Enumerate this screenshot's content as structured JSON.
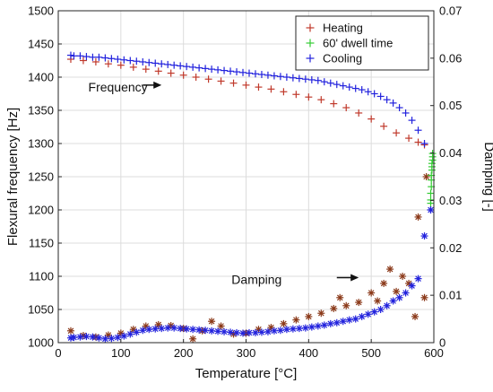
{
  "chart_data": {
    "type": "scatter",
    "xlabel": "Temperature [°C]",
    "ylabel_left": "Flexural frequency [Hz]",
    "ylabel_right": "Damping [-]",
    "xlim": [
      0,
      600
    ],
    "ylim_left": [
      1000,
      1500
    ],
    "ylim_right": [
      0,
      0.07
    ],
    "x_ticks": [
      "0",
      "100",
      "200",
      "300",
      "400",
      "500",
      "600"
    ],
    "y_left_ticks": [
      "1000",
      "1050",
      "1100",
      "1150",
      "1200",
      "1250",
      "1300",
      "1350",
      "1400",
      "1450",
      "1500"
    ],
    "y_right_ticks": [
      "0",
      "0.01",
      "0.02",
      "0.03",
      "0.04",
      "0.05",
      "0.06",
      "0.07"
    ],
    "grid": true,
    "legend": {
      "placement": "top-right",
      "entries": [
        {
          "label": "Heating",
          "color": "#c0392b"
        },
        {
          "label": "60' dwell time",
          "color": "#33cc33"
        },
        {
          "label": "Cooling",
          "color": "#2222dd"
        }
      ]
    },
    "annotations": [
      {
        "text": "Frequency",
        "x": 135,
        "y": 1385
      },
      {
        "text": "Damping",
        "x": 500,
        "y": 1095
      }
    ],
    "series": [
      {
        "name": "Heating",
        "axis": "left",
        "marker": "plus",
        "color": "#c0392b",
        "x": [
          20,
          40,
          60,
          80,
          100,
          120,
          140,
          160,
          180,
          200,
          220,
          240,
          260,
          280,
          300,
          320,
          340,
          360,
          380,
          400,
          420,
          440,
          460,
          480,
          500,
          520,
          540,
          560,
          575,
          585
        ],
        "y": [
          1427,
          1425,
          1423,
          1420,
          1418,
          1415,
          1412,
          1409,
          1406,
          1403,
          1400,
          1397,
          1394,
          1391,
          1388,
          1385,
          1382,
          1378,
          1374,
          1370,
          1366,
          1360,
          1354,
          1346,
          1337,
          1326,
          1316,
          1308,
          1302,
          1298
        ]
      },
      {
        "name": "Heating",
        "axis": "right",
        "marker": "star",
        "color": "#8b3a1a",
        "x": [
          20,
          40,
          60,
          80,
          100,
          120,
          140,
          160,
          180,
          200,
          215,
          230,
          245,
          260,
          280,
          300,
          320,
          340,
          360,
          380,
          400,
          420,
          440,
          450,
          460,
          480,
          500,
          510,
          520,
          530,
          540,
          550,
          560,
          570,
          575,
          585,
          588
        ],
        "y": [
          0.0025,
          0.0015,
          0.0012,
          0.0016,
          0.002,
          0.0028,
          0.0035,
          0.0038,
          0.0036,
          0.003,
          0.0008,
          0.0025,
          0.0045,
          0.0035,
          0.0018,
          0.002,
          0.0028,
          0.0032,
          0.004,
          0.0048,
          0.0055,
          0.0062,
          0.0072,
          0.0095,
          0.0078,
          0.0085,
          0.0105,
          0.0088,
          0.0125,
          0.0155,
          0.0108,
          0.014,
          0.0125,
          0.0055,
          0.0265,
          0.0095,
          0.035
        ]
      },
      {
        "name": "60' dwell time",
        "axis": "left",
        "marker": "plus",
        "color": "#33cc33",
        "x": [
          595,
          595,
          595,
          596,
          596,
          596,
          597,
          597,
          597,
          598,
          598,
          598
        ],
        "y": [
          1210,
          1215,
          1225,
          1235,
          1245,
          1252,
          1260,
          1265,
          1270,
          1275,
          1280,
          1285
        ]
      },
      {
        "name": "Cooling",
        "axis": "left",
        "marker": "plus",
        "color": "#2222dd",
        "x": [
          595,
          585,
          575,
          565,
          555,
          545,
          535,
          525,
          515,
          505,
          495,
          485,
          475,
          465,
          455,
          445,
          435,
          425,
          415,
          405,
          395,
          385,
          375,
          365,
          355,
          345,
          335,
          325,
          315,
          305,
          295,
          285,
          275,
          265,
          255,
          245,
          235,
          225,
          215,
          205,
          195,
          185,
          175,
          165,
          155,
          145,
          135,
          125,
          115,
          105,
          95,
          85,
          75,
          65,
          55,
          45,
          35,
          25,
          20
        ],
        "y": [
          1200,
          1300,
          1320,
          1335,
          1346,
          1354,
          1361,
          1366,
          1371,
          1375,
          1378,
          1381,
          1383,
          1385,
          1387,
          1389,
          1391,
          1393,
          1395,
          1396,
          1397,
          1398,
          1399,
          1400,
          1401,
          1402,
          1403,
          1404,
          1405,
          1406,
          1407,
          1408,
          1409,
          1410,
          1411,
          1412,
          1413,
          1414,
          1415,
          1416,
          1417,
          1418,
          1419,
          1420,
          1421,
          1422,
          1423,
          1424,
          1425,
          1426,
          1427,
          1428,
          1429,
          1430,
          1430,
          1431,
          1432,
          1432,
          1433
        ]
      },
      {
        "name": "Cooling",
        "axis": "right",
        "marker": "star",
        "color": "#2222dd",
        "x": [
          595,
          585,
          575,
          565,
          555,
          545,
          535,
          525,
          515,
          505,
          495,
          485,
          475,
          465,
          455,
          445,
          435,
          425,
          415,
          405,
          395,
          385,
          375,
          365,
          355,
          345,
          335,
          325,
          315,
          305,
          295,
          285,
          275,
          265,
          255,
          245,
          235,
          225,
          215,
          205,
          195,
          185,
          175,
          165,
          155,
          145,
          135,
          125,
          115,
          105,
          95,
          85,
          75,
          65,
          55,
          45,
          35,
          25,
          20
        ],
        "y": [
          0.028,
          0.0225,
          0.0135,
          0.012,
          0.0105,
          0.0095,
          0.0088,
          0.0078,
          0.007,
          0.0065,
          0.006,
          0.0055,
          0.005,
          0.0048,
          0.0045,
          0.0042,
          0.004,
          0.0037,
          0.0035,
          0.0033,
          0.0031,
          0.003,
          0.0029,
          0.0028,
          0.0026,
          0.0025,
          0.0023,
          0.0022,
          0.0021,
          0.0021,
          0.002,
          0.0021,
          0.0022,
          0.0023,
          0.0024,
          0.0025,
          0.0026,
          0.0027,
          0.0028,
          0.0029,
          0.003,
          0.0031,
          0.0031,
          0.003,
          0.0029,
          0.0028,
          0.0026,
          0.0022,
          0.0018,
          0.0014,
          0.0011,
          0.0009,
          0.0008,
          0.001,
          0.0012,
          0.0013,
          0.0012,
          0.0011,
          0.001
        ]
      }
    ]
  }
}
